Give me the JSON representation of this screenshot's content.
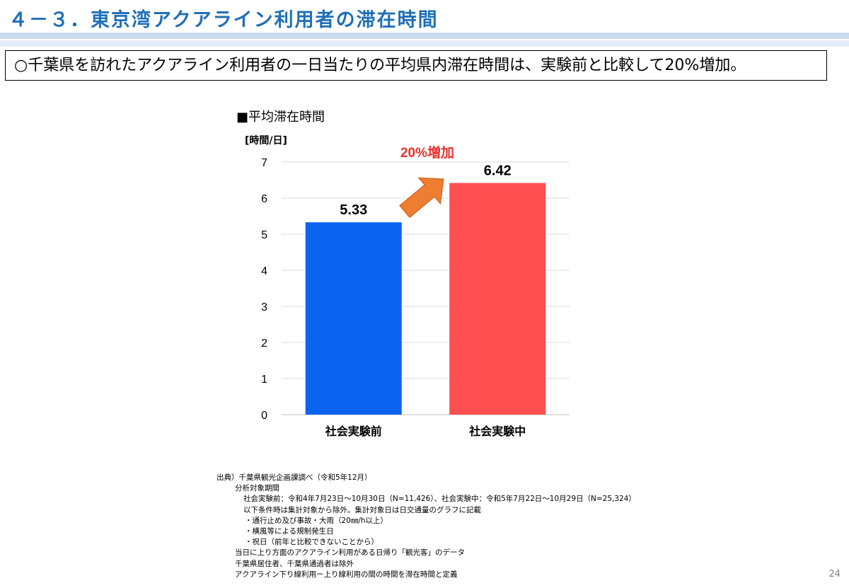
{
  "slide": {
    "title": "４－３．東京湾アクアライン利用者の滞在時間",
    "summary": "○千葉県を訪れたアクアライン利用者の一日当たりの平均県内滞在時間は、実験前と比較して20%増加。",
    "page_number": "24"
  },
  "chart_data": {
    "type": "bar",
    "title": "■平均滞在時間",
    "ylabel": "[時間/日]",
    "categories": [
      "社会実験前",
      "社会実験中"
    ],
    "values": [
      5.33,
      6.42
    ],
    "data_labels": [
      "5.33",
      "6.42"
    ],
    "yticks": [
      "0",
      "1",
      "2",
      "3",
      "4",
      "5",
      "6",
      "7"
    ],
    "ylim": [
      0,
      7
    ],
    "grid": true,
    "colors": [
      "#0a64f0",
      "#ff4f50"
    ],
    "annotation": {
      "text": "20%増加",
      "color": "#e8332e",
      "arrow_color": "#ec7d31"
    }
  },
  "notes": [
    "出典）千葉県観光企画課調べ（令和5年12月）",
    "分析対象期間",
    "社会実験前：令和4年7月23日～10月30日（N=11,426）、社会実験中：令和5年7月22日～10月29日（N=25,324）",
    "以下条件時は集計対象から除外。集計対象日は日交通量のグラフに記載",
    "・通行止め及び事故・大雨（20㎜/h以上）",
    "・横風等による規制発生日",
    "・祝日（前年と比較できないことから）",
    "当日に上り方面のアクアライン利用がある日帰り「観光客」のデータ",
    "千葉県居住者、千葉県通過者は除外",
    "アクアライン下り線利用ー上り線利用の間の時間を滞在時間と定義"
  ]
}
